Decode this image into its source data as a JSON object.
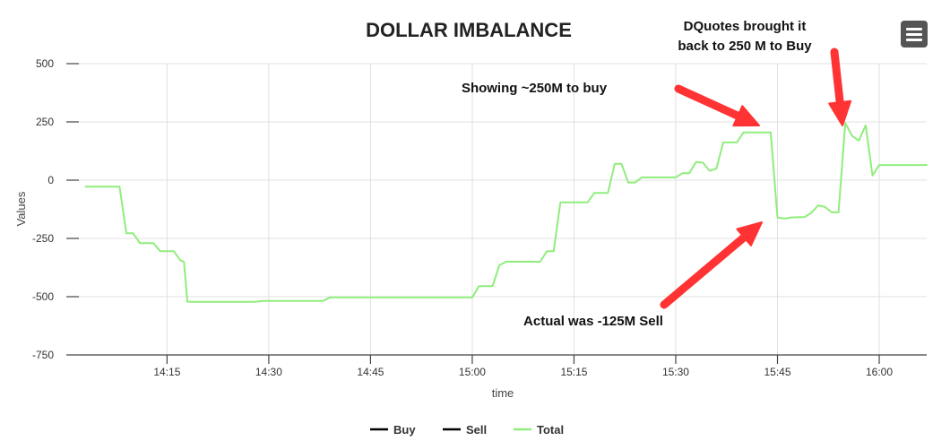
{
  "chart_data": {
    "type": "line",
    "title": "DOLLAR IMBALANCE",
    "xlabel": "time",
    "ylabel": "Values",
    "x_ticks": [
      "14:15",
      "14:30",
      "14:45",
      "15:00",
      "15:15",
      "15:30",
      "15:45",
      "16:00"
    ],
    "y_ticks": [
      500,
      250,
      0,
      -250,
      -500,
      -750
    ],
    "xlim": [
      "14:02",
      "16:07"
    ],
    "ylim": [
      -750,
      500
    ],
    "grid": true,
    "legend_position": "bottom-center",
    "series": [
      {
        "name": "Buy",
        "color": "#000000",
        "points": []
      },
      {
        "name": "Sell",
        "color": "#000000",
        "points": []
      },
      {
        "name": "Total",
        "color": "#90ed7d",
        "points": [
          [
            "14:03",
            -28
          ],
          [
            "14:08",
            -28
          ],
          [
            "14:09",
            -228
          ],
          [
            "14:10",
            -228
          ],
          [
            "14:11",
            -270
          ],
          [
            "14:13",
            -270
          ],
          [
            "14:14",
            -305
          ],
          [
            "14:16",
            -305
          ],
          [
            "14:17",
            -345
          ],
          [
            "14:17:30",
            -350
          ],
          [
            "14:18",
            -522
          ],
          [
            "14:28",
            -522
          ],
          [
            "14:29",
            -518
          ],
          [
            "14:38",
            -518
          ],
          [
            "14:39",
            -503
          ],
          [
            "15:00",
            -503
          ],
          [
            "15:01",
            -455
          ],
          [
            "15:03",
            -455
          ],
          [
            "15:04",
            -365
          ],
          [
            "15:05",
            -350
          ],
          [
            "15:10",
            -350
          ],
          [
            "15:11",
            -305
          ],
          [
            "15:12",
            -305
          ],
          [
            "15:13",
            -95
          ],
          [
            "15:17",
            -95
          ],
          [
            "15:18",
            -55
          ],
          [
            "15:20",
            -55
          ],
          [
            "15:21",
            70
          ],
          [
            "15:22",
            70
          ],
          [
            "15:23",
            -10
          ],
          [
            "15:24",
            -10
          ],
          [
            "15:25",
            12
          ],
          [
            "15:30",
            12
          ],
          [
            "15:31",
            30
          ],
          [
            "15:32",
            30
          ],
          [
            "15:33",
            78
          ],
          [
            "15:34",
            75
          ],
          [
            "15:35",
            40
          ],
          [
            "15:36",
            50
          ],
          [
            "15:37",
            162
          ],
          [
            "15:39",
            162
          ],
          [
            "15:40",
            205
          ],
          [
            "15:44",
            205
          ],
          [
            "15:45",
            -160
          ],
          [
            "15:46",
            -165
          ],
          [
            "15:47",
            -160
          ],
          [
            "15:49",
            -158
          ],
          [
            "15:50",
            -140
          ],
          [
            "15:51",
            -108
          ],
          [
            "15:52",
            -115
          ],
          [
            "15:53",
            -138
          ],
          [
            "15:54",
            -138
          ],
          [
            "15:55",
            245
          ],
          [
            "15:56",
            190
          ],
          [
            "15:57",
            170
          ],
          [
            "15:58",
            235
          ],
          [
            "15:59",
            20
          ],
          [
            "16:00",
            65
          ],
          [
            "16:07",
            65
          ]
        ]
      }
    ],
    "annotations": [
      {
        "text": "DQuotes brought it",
        "color": "#ff3333"
      },
      {
        "text": "back to 250 M to Buy",
        "color": "#ff3333"
      },
      {
        "text": "Showing ~250M to buy",
        "color": "#ff3333"
      },
      {
        "text": "Actual was -125M Sell",
        "color": "#ff3333"
      }
    ]
  },
  "ui": {
    "menu_icon": "hamburger-menu-icon"
  }
}
